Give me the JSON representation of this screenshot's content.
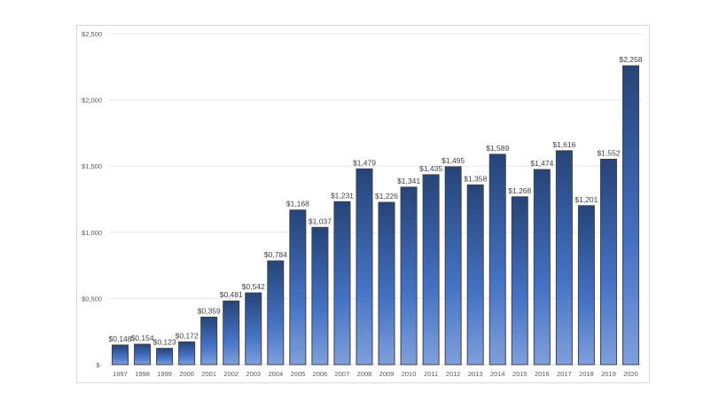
{
  "chart_data": {
    "type": "bar",
    "title": "",
    "xlabel": "",
    "ylabel": "",
    "categories": [
      "1997",
      "1998",
      "1999",
      "2000",
      "2001",
      "2002",
      "2003",
      "2004",
      "2005",
      "2006",
      "2007",
      "2008",
      "2009",
      "2010",
      "2011",
      "2012",
      "2013",
      "2014",
      "2015",
      "2016",
      "2017",
      "2018",
      "2019",
      "2020"
    ],
    "values": [
      0.148,
      0.154,
      0.123,
      0.172,
      0.359,
      0.481,
      0.542,
      0.784,
      1.168,
      1.037,
      1.231,
      1.479,
      1.226,
      1.341,
      1.435,
      1.495,
      1.358,
      1.589,
      1.268,
      1.474,
      1.616,
      1.201,
      1.552,
      2.258
    ],
    "data_labels": [
      "$0,148",
      "$0,154",
      "$0,123",
      "$0,172",
      "$0,359",
      "$0,481",
      "$0,542",
      "$0,784",
      "$1,168",
      "$1,037",
      "$1,231",
      "$1,479",
      "$1,226",
      "$1,341",
      "$1,435",
      "$1,495",
      "$1,358",
      "$1,589",
      "$1,268",
      "$1,474",
      "$1,616",
      "$1,201",
      "$1,552",
      "$2,258"
    ],
    "ylim": [
      0,
      2.5
    ],
    "y_ticks": [
      0,
      0.5,
      1.0,
      1.5,
      2.0,
      2.5
    ],
    "y_tick_labels": [
      "$-",
      "$0,500",
      "$1,000",
      "$1,500",
      "$2,000",
      "$2,500"
    ],
    "grid": true,
    "legend": "none",
    "colors": {
      "bar_top": "#264478",
      "bar_bottom": "#7f9fdc",
      "bar_mid": "#4472c4",
      "bar_outline": "#404040",
      "grid": "#e6e6e6"
    }
  }
}
